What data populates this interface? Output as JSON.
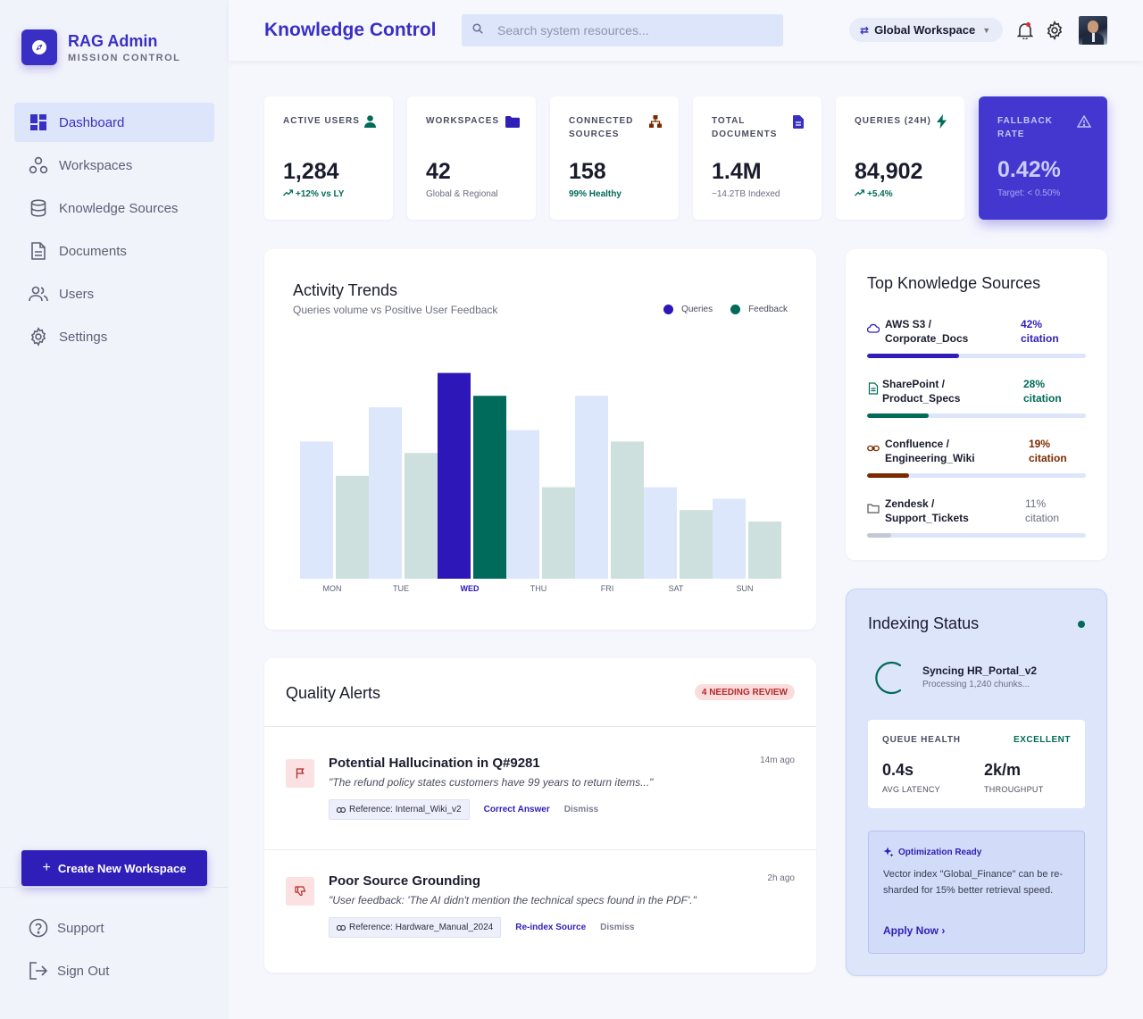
{
  "brand": {
    "title": "RAG Admin",
    "subtitle": "MISSION CONTROL"
  },
  "nav": [
    {
      "label": "Dashboard",
      "icon": "dashboard-icon",
      "active": true
    },
    {
      "label": "Workspaces",
      "icon": "workspaces-icon",
      "active": false
    },
    {
      "label": "Knowledge Sources",
      "icon": "database-icon",
      "active": false
    },
    {
      "label": "Documents",
      "icon": "document-icon",
      "active": false
    },
    {
      "label": "Users",
      "icon": "users-icon",
      "active": false
    },
    {
      "label": "Settings",
      "icon": "gear-icon",
      "active": false
    }
  ],
  "sidebar": {
    "create_label": "Create New Workspace",
    "support_label": "Support",
    "signout_label": "Sign Out"
  },
  "header": {
    "title": "Knowledge Control",
    "search_placeholder": "Search system resources...",
    "workspace": "Global Workspace"
  },
  "stats": [
    {
      "label": "ACTIVE USERS",
      "value": "1,284",
      "sub": "+12% vs LY",
      "icon": "user-icon"
    },
    {
      "label": "WORKSPACES",
      "value": "42",
      "sub": "Global & Regional",
      "icon": "folder-icon"
    },
    {
      "label": "CONNECTED SOURCES",
      "value": "158",
      "sub": "99% Healthy",
      "icon": "hierarchy-icon"
    },
    {
      "label": "TOTAL DOCUMENTS",
      "value": "1.4M",
      "sub": "~14.2TB Indexed",
      "icon": "document-icon"
    },
    {
      "label": "QUERIES (24H)",
      "value": "84,902",
      "sub": "+5.4%",
      "icon": "bolt-icon"
    },
    {
      "label": "FALLBACK RATE",
      "value": "0.42%",
      "sub": "Target: < 0.50%",
      "icon": "warning-icon"
    }
  ],
  "activity": {
    "title": "Activity Trends",
    "subtitle": "Queries volume vs Positive User Feedback",
    "legend_queries": "Queries",
    "legend_feedback": "Feedback"
  },
  "chart_data": {
    "type": "bar",
    "categories": [
      "MON",
      "TUE",
      "WED",
      "THU",
      "FRI",
      "SAT",
      "SUN"
    ],
    "series": [
      {
        "name": "Queries",
        "values": [
          60,
          75,
          90,
          65,
          80,
          40,
          35
        ]
      },
      {
        "name": "Feedback",
        "values": [
          45,
          55,
          80,
          40,
          60,
          30,
          25
        ]
      }
    ],
    "highlight_category": "WED",
    "colors": {
      "queries": "#dde7fc",
      "feedback": "#cde0de",
      "queries_highlight": "#2d17b8",
      "feedback_highlight": "#006b5b"
    },
    "ylim": [
      0,
      100
    ],
    "grid": false,
    "legend": "top-right"
  },
  "sources": {
    "title": "Top Knowledge Sources",
    "items": [
      {
        "name_line1": "AWS S3 /",
        "name_line2": "Corporate_Docs",
        "pct": "42%",
        "suffix": "citation",
        "value": 0.42,
        "color": "#2f1fb8",
        "icon": "cloud-icon"
      },
      {
        "name_line1": "SharePoint /",
        "name_line2": "Product_Specs",
        "pct": "28%",
        "suffix": "citation",
        "value": 0.28,
        "color": "#006b58",
        "icon": "file-icon"
      },
      {
        "name_line1": "Confluence /",
        "name_line2": "Engineering_Wiki",
        "pct": "19%",
        "suffix": "citation",
        "value": 0.19,
        "color": "#7a2a00",
        "icon": "link-icon"
      },
      {
        "name_line1": "Zendesk /",
        "name_line2": "Support_Tickets",
        "pct": "11%",
        "suffix": "citation",
        "value": 0.11,
        "color": "#c3c7d6",
        "icon": "folder-outline-icon"
      }
    ]
  },
  "alerts": {
    "title": "Quality Alerts",
    "badge": "4 NEEDING REVIEW",
    "items": [
      {
        "title": "Potential Hallucination in Q#9281",
        "time": "14m ago",
        "quote": "\"The refund policy states customers have 99 years to return items...\"",
        "reference": "Reference: Internal_Wiki_v2",
        "action": "Correct Answer",
        "dismiss": "Dismiss",
        "icon": "flag-icon"
      },
      {
        "title": "Poor Source Grounding",
        "time": "2h ago",
        "quote": "\"User feedback: 'The AI didn't mention the technical specs found in the PDF'.\"",
        "reference": "Reference: Hardware_Manual_2024",
        "action": "Re-index Source",
        "dismiss": "Dismiss",
        "icon": "thumbs-down-icon"
      }
    ]
  },
  "indexing": {
    "title": "Indexing Status",
    "sync": "Syncing HR_Portal_v2",
    "processing": "Processing 1,240 chunks...",
    "queue_label": "QUEUE HEALTH",
    "queue_status": "EXCELLENT",
    "latency_value": "0.4s",
    "latency_label": "AVG LATENCY",
    "throughput_value": "2k/m",
    "throughput_label": "THROUGHPUT",
    "opt_title": "Optimization Ready",
    "opt_body": "Vector index \"Global_Finance\" can be re-sharded for 15% better retrieval speed.",
    "opt_link": "Apply Now ›"
  }
}
